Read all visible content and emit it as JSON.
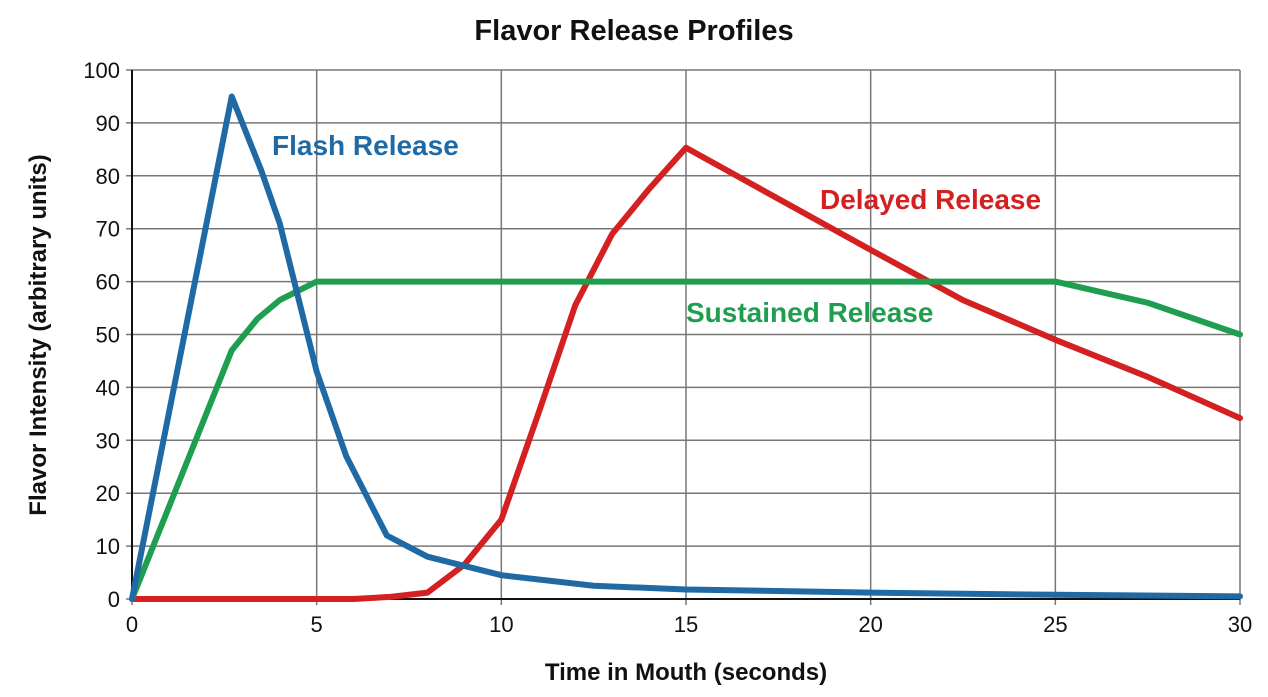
{
  "chart_data": {
    "type": "line",
    "title": "Flavor Release Profiles",
    "xlabel": "Time in Mouth (seconds)",
    "ylabel": "Flavor Intensity (arbitrary units)",
    "xlim": [
      0,
      30
    ],
    "ylim": [
      0,
      100
    ],
    "xticks": [
      0,
      5,
      10,
      15,
      20,
      25,
      30
    ],
    "yticks": [
      0,
      10,
      20,
      30,
      40,
      50,
      60,
      70,
      80,
      90,
      100
    ],
    "grid": true,
    "legend": "inline labels",
    "series": [
      {
        "name": "Flash Release",
        "color": "#1f6aa5",
        "points": [
          [
            0,
            0
          ],
          [
            2.7,
            95
          ],
          [
            3.5,
            81
          ],
          [
            4,
            71
          ],
          [
            5,
            43
          ],
          [
            5.8,
            27
          ],
          [
            6.9,
            12
          ],
          [
            8,
            8
          ],
          [
            10,
            4.5
          ],
          [
            12.5,
            2.5
          ],
          [
            15,
            1.8
          ],
          [
            20,
            1.2
          ],
          [
            25,
            0.8
          ],
          [
            30,
            0.5
          ]
        ]
      },
      {
        "name": "Delayed Release",
        "color": "#d42020",
        "points": [
          [
            0,
            0
          ],
          [
            6,
            0
          ],
          [
            7,
            0.4
          ],
          [
            8,
            1.2
          ],
          [
            9,
            6.5
          ],
          [
            10,
            15
          ],
          [
            11,
            35
          ],
          [
            12,
            55.5
          ],
          [
            13,
            69
          ],
          [
            14,
            77.5
          ],
          [
            15,
            85.3
          ],
          [
            20,
            66
          ],
          [
            22.5,
            56.5
          ],
          [
            25,
            49
          ],
          [
            27.5,
            42
          ],
          [
            30,
            34.2
          ]
        ]
      },
      {
        "name": "Sustained Release",
        "color": "#1f9e50",
        "points": [
          [
            0,
            0
          ],
          [
            2.7,
            47
          ],
          [
            3.4,
            53
          ],
          [
            4,
            56.5
          ],
          [
            5,
            60
          ],
          [
            25,
            60
          ],
          [
            27.5,
            56
          ],
          [
            30,
            50
          ]
        ]
      }
    ]
  }
}
